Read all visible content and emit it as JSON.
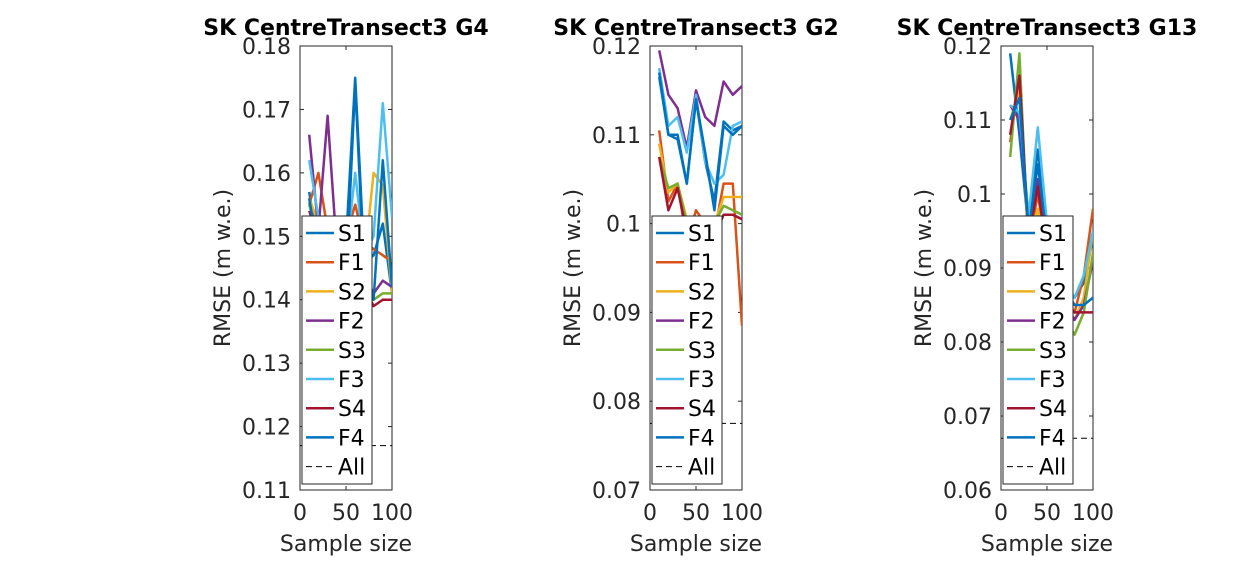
{
  "chart_data": [
    {
      "type": "line",
      "title": "SK CentreTransect3 G4",
      "xlabel": "Sample size",
      "ylabel": "RMSE (m w.e.)",
      "xlim": [
        0,
        100
      ],
      "ylim": [
        0.11,
        0.18
      ],
      "xticks": [
        "0",
        "50",
        "100"
      ],
      "yticks": [
        "0.11",
        "0.12",
        "0.13",
        "0.14",
        "0.15",
        "0.16",
        "0.17",
        "0.18"
      ],
      "legend_position": "inside, lower-left",
      "x": [
        10,
        20,
        30,
        40,
        50,
        60,
        70,
        80,
        90,
        100
      ],
      "all_value": 0.117,
      "series": [
        {
          "name": "S1",
          "color": "#0072BD",
          "values": [
            0.157,
            0.148,
            0.151,
            0.147,
            0.149,
            0.175,
            0.146,
            0.147,
            0.152,
            0.141
          ]
        },
        {
          "name": "F1",
          "color": "#D95319",
          "values": [
            0.155,
            0.16,
            0.151,
            0.149,
            0.15,
            0.155,
            0.149,
            0.148,
            0.147,
            0.146
          ]
        },
        {
          "name": "S2",
          "color": "#EDB120",
          "values": [
            0.156,
            0.152,
            0.15,
            0.148,
            0.147,
            0.152,
            0.146,
            0.16,
            0.158,
            0.141
          ]
        },
        {
          "name": "F2",
          "color": "#7E2F8E",
          "values": [
            0.166,
            0.151,
            0.169,
            0.148,
            0.146,
            0.148,
            0.144,
            0.141,
            0.143,
            0.142
          ]
        },
        {
          "name": "S3",
          "color": "#77AC30",
          "values": [
            0.155,
            0.15,
            0.148,
            0.146,
            0.145,
            0.15,
            0.144,
            0.14,
            0.141,
            0.141
          ]
        },
        {
          "name": "F3",
          "color": "#4DBEEE",
          "values": [
            0.162,
            0.153,
            0.152,
            0.148,
            0.147,
            0.16,
            0.147,
            0.15,
            0.171,
            0.153
          ]
        },
        {
          "name": "S4",
          "color": "#A2142F",
          "values": [
            0.154,
            0.15,
            0.149,
            0.146,
            0.144,
            0.147,
            0.142,
            0.139,
            0.14,
            0.14
          ]
        },
        {
          "name": "F4",
          "color": "#0072BD",
          "values": [
            0.156,
            0.147,
            0.15,
            0.145,
            0.143,
            0.174,
            0.143,
            0.14,
            0.162,
            0.142
          ]
        }
      ],
      "legend_all_label": "All"
    },
    {
      "type": "line",
      "title": "SK CentreTransect3 G2",
      "xlabel": "Sample size",
      "ylabel": "RMSE (m w.e.)",
      "xlim": [
        0,
        100
      ],
      "ylim": [
        0.07,
        0.12
      ],
      "xticks": [
        "0",
        "50",
        "100"
      ],
      "yticks": [
        "0.07",
        "0.08",
        "0.09",
        "0.1",
        "0.11",
        "0.12"
      ],
      "legend_position": "inside, lower-left",
      "x": [
        10,
        20,
        30,
        40,
        50,
        60,
        70,
        80,
        90,
        100
      ],
      "all_value": 0.0775,
      "series": [
        {
          "name": "S1",
          "color": "#0072BD",
          "values": [
            0.1165,
            0.11,
            0.11,
            0.1045,
            0.114,
            0.107,
            0.1025,
            0.1115,
            0.1105,
            0.111
          ]
        },
        {
          "name": "F1",
          "color": "#D95319",
          "values": [
            0.1105,
            0.1025,
            0.1045,
            0.098,
            0.1015,
            0.1,
            0.099,
            0.1045,
            0.1045,
            0.0885
          ]
        },
        {
          "name": "S2",
          "color": "#EDB120",
          "values": [
            0.109,
            0.1035,
            0.1045,
            0.1005,
            0.1005,
            0.1005,
            0.1,
            0.103,
            0.103,
            0.103
          ]
        },
        {
          "name": "F2",
          "color": "#7E2F8E",
          "values": [
            0.1195,
            0.1145,
            0.113,
            0.1085,
            0.115,
            0.112,
            0.111,
            0.116,
            0.1145,
            0.1155
          ]
        },
        {
          "name": "S3",
          "color": "#77AC30",
          "values": [
            0.1075,
            0.104,
            0.1045,
            0.1,
            0.1005,
            0.1,
            0.1,
            0.102,
            0.1015,
            0.101
          ]
        },
        {
          "name": "F3",
          "color": "#4DBEEE",
          "values": [
            0.1175,
            0.111,
            0.112,
            0.108,
            0.1145,
            0.107,
            0.1045,
            0.1055,
            0.111,
            0.1115
          ]
        },
        {
          "name": "S4",
          "color": "#A2142F",
          "values": [
            0.1075,
            0.1015,
            0.104,
            0.099,
            0.1,
            0.099,
            0.0985,
            0.101,
            0.101,
            0.1005
          ]
        },
        {
          "name": "F4",
          "color": "#0072BD",
          "values": [
            0.117,
            0.11,
            0.1095,
            0.1045,
            0.114,
            0.108,
            0.1015,
            0.111,
            0.11,
            0.111
          ]
        }
      ],
      "legend_all_label": "All"
    },
    {
      "type": "line",
      "title": "SK CentreTransect3 G13",
      "xlabel": "Sample size",
      "ylabel": "RMSE (m w.e.)",
      "xlim": [
        0,
        100
      ],
      "ylim": [
        0.06,
        0.12
      ],
      "xticks": [
        "0",
        "50",
        "100"
      ],
      "yticks": [
        "0.06",
        "0.07",
        "0.08",
        "0.09",
        "0.1",
        "0.11",
        "0.12"
      ],
      "legend_position": "inside, lower-left",
      "x": [
        10,
        20,
        30,
        40,
        50,
        60,
        70,
        80,
        90,
        100
      ],
      "all_value": 0.067,
      "series": [
        {
          "name": "S1",
          "color": "#0072BD",
          "values": [
            0.119,
            0.108,
            0.095,
            0.106,
            0.096,
            0.091,
            0.088,
            0.086,
            0.088,
            0.094
          ]
        },
        {
          "name": "F1",
          "color": "#D95319",
          "values": [
            0.107,
            0.116,
            0.093,
            0.1,
            0.092,
            0.089,
            0.086,
            0.084,
            0.089,
            0.098
          ]
        },
        {
          "name": "S2",
          "color": "#EDB120",
          "values": [
            0.11,
            0.114,
            0.094,
            0.098,
            0.091,
            0.088,
            0.085,
            0.083,
            0.086,
            0.095
          ]
        },
        {
          "name": "F2",
          "color": "#7E2F8E",
          "values": [
            0.112,
            0.11,
            0.096,
            0.102,
            0.093,
            0.088,
            0.085,
            0.083,
            0.085,
            0.091
          ]
        },
        {
          "name": "S3",
          "color": "#77AC30",
          "values": [
            0.105,
            0.119,
            0.092,
            0.097,
            0.09,
            0.086,
            0.083,
            0.081,
            0.084,
            0.092
          ]
        },
        {
          "name": "F3",
          "color": "#4DBEEE",
          "values": [
            0.112,
            0.111,
            0.097,
            0.109,
            0.096,
            0.09,
            0.088,
            0.086,
            0.089,
            0.095
          ]
        },
        {
          "name": "S4",
          "color": "#A2142F",
          "values": [
            0.108,
            0.116,
            0.094,
            0.101,
            0.092,
            0.088,
            0.085,
            0.084,
            0.084,
            0.084
          ]
        },
        {
          "name": "F4",
          "color": "#0072BD",
          "values": [
            0.11,
            0.113,
            0.095,
            0.104,
            0.094,
            0.09,
            0.087,
            0.085,
            0.085,
            0.086
          ]
        }
      ],
      "legend_all_label": "All"
    }
  ]
}
